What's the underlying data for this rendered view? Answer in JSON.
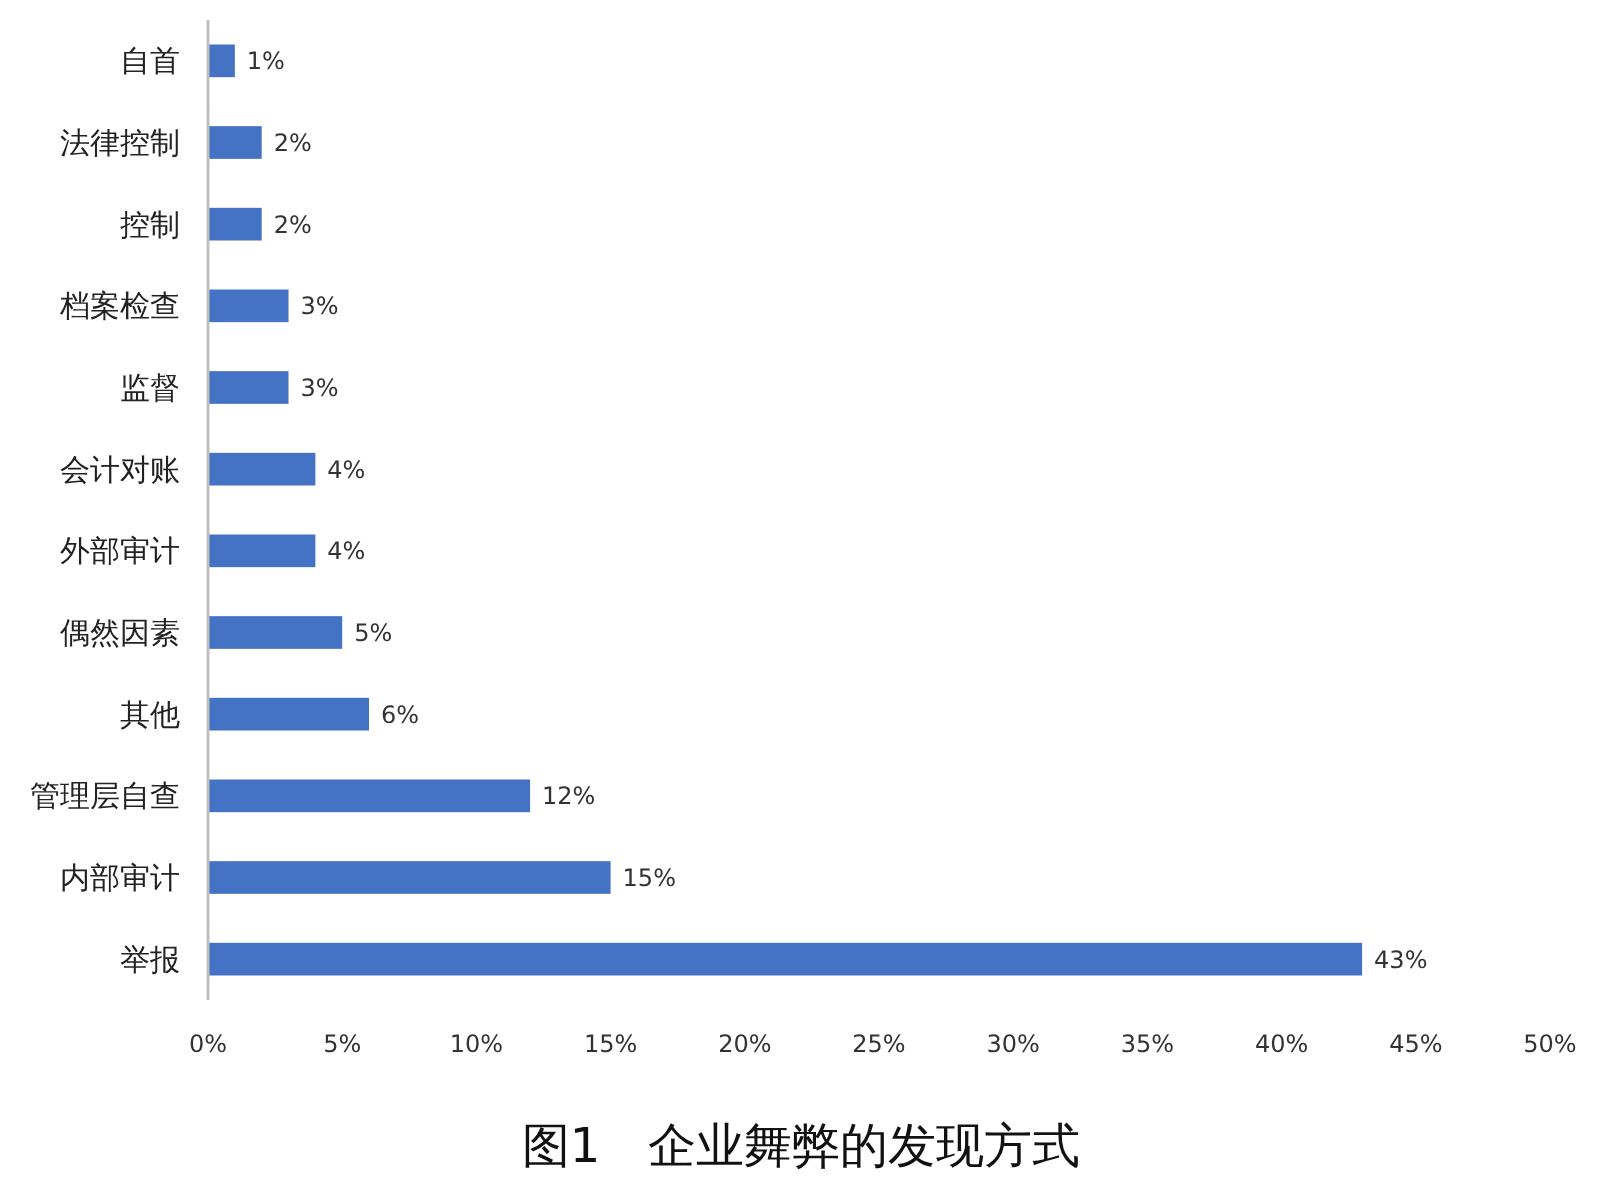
{
  "chart_data": {
    "type": "bar",
    "orientation": "horizontal",
    "title": "图1　企业舞弊的发现方式",
    "categories": [
      "自首",
      "法律控制",
      "控制",
      "档案检查",
      "监督",
      "会计对账",
      "外部审计",
      "偶然因素",
      "其他",
      "管理层自查",
      "内部审计",
      "举报"
    ],
    "values": [
      1,
      2,
      2,
      3,
      3,
      4,
      4,
      5,
      6,
      12,
      15,
      43
    ],
    "value_labels": [
      "1%",
      "2%",
      "2%",
      "3%",
      "3%",
      "4%",
      "4%",
      "5%",
      "6%",
      "12%",
      "15%",
      "43%"
    ],
    "color": "#4472c4",
    "xlim": [
      0,
      50
    ],
    "xticks": [
      {
        "value": 0,
        "label": "0%"
      },
      {
        "value": 5,
        "label": "5%"
      },
      {
        "value": 10,
        "label": "10%"
      },
      {
        "value": 15,
        "label": "15%"
      },
      {
        "value": 20,
        "label": "20%"
      },
      {
        "value": 25,
        "label": "25%"
      },
      {
        "value": 30,
        "label": "30%"
      },
      {
        "value": 35,
        "label": "35%"
      },
      {
        "value": 40,
        "label": "40%"
      },
      {
        "value": 45,
        "label": "45%"
      },
      {
        "value": 50,
        "label": "50%"
      }
    ],
    "grid": false
  }
}
